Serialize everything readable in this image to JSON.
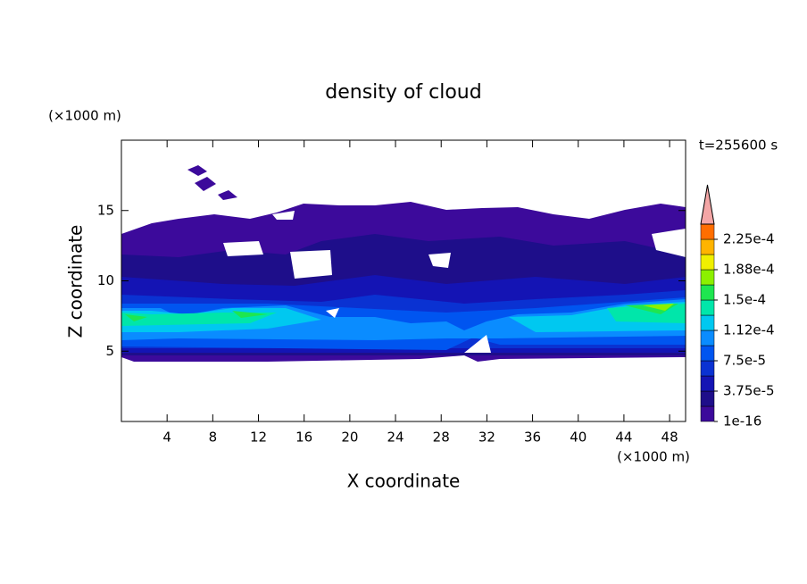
{
  "chart_data": {
    "type": "contour",
    "title": "density of cloud",
    "x_label": "X coordinate",
    "y_label": "Z coordinate",
    "x_unit": "(×1000 m)",
    "y_unit": "(×1000 m)",
    "time_label": "t=255600 s",
    "xlim": [
      0,
      49.4
    ],
    "xticks": [
      4,
      8,
      12,
      16,
      20,
      24,
      28,
      32,
      36,
      40,
      44,
      48
    ],
    "ylim": [
      0,
      20
    ],
    "yticks": [
      5,
      10,
      15
    ],
    "colorbar": {
      "clim": [
        1e-16,
        0.00024375
      ],
      "ticks": [
        {
          "value": 1e-16,
          "label": "1e-16"
        },
        {
          "value": 3.75e-05,
          "label": "3.75e-5"
        },
        {
          "value": 7.5e-05,
          "label": "7.5e-5"
        },
        {
          "value": 0.0001125,
          "label": "1.12e-4"
        },
        {
          "value": 0.00015,
          "label": "1.5e-4"
        },
        {
          "value": 0.0001875,
          "label": "1.88e-4"
        },
        {
          "value": 0.000225,
          "label": "2.25e-4"
        }
      ],
      "colors": [
        "#3c0a9b",
        "#1e0e8a",
        "#1414b4",
        "#0a32d2",
        "#0055f0",
        "#0a8cff",
        "#00c8f0",
        "#00e6aa",
        "#1ee650",
        "#8cf000",
        "#f0f000",
        "#ffb400",
        "#ff6e00"
      ],
      "extend_color": "#f4a6a6"
    }
  }
}
